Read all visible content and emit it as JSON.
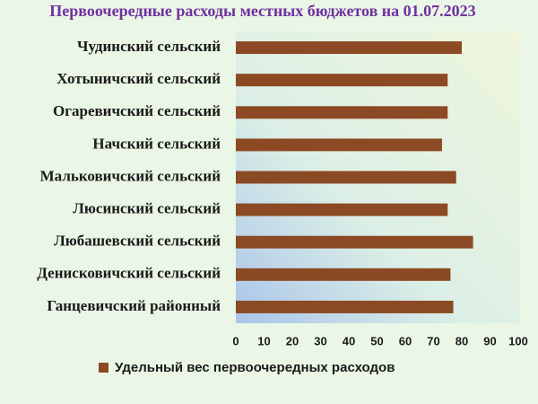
{
  "chart_data": {
    "type": "barh",
    "title": "Первоочередные расходы местных бюджетов на 01.07.2023",
    "categories": [
      "Чудинский сельский",
      "Хотыничский сельский",
      "Огаревичский сельский",
      "Начский сельский",
      "Мальковичский сельский",
      "Люсинский сельский",
      "Любашевский сельский",
      "Денисковичский сельский",
      "Ганцевичский районный"
    ],
    "series": [
      {
        "name": "Удельный вес первоочередных расходов",
        "color": "#8b4a24",
        "values": [
          80,
          75,
          75,
          73,
          78,
          75,
          84,
          76,
          77
        ]
      }
    ],
    "xlim": [
      0,
      100
    ],
    "xticks": [
      0,
      10,
      20,
      30,
      40,
      50,
      60,
      70,
      80,
      90,
      100
    ],
    "grid": false,
    "legend": "bottom"
  }
}
